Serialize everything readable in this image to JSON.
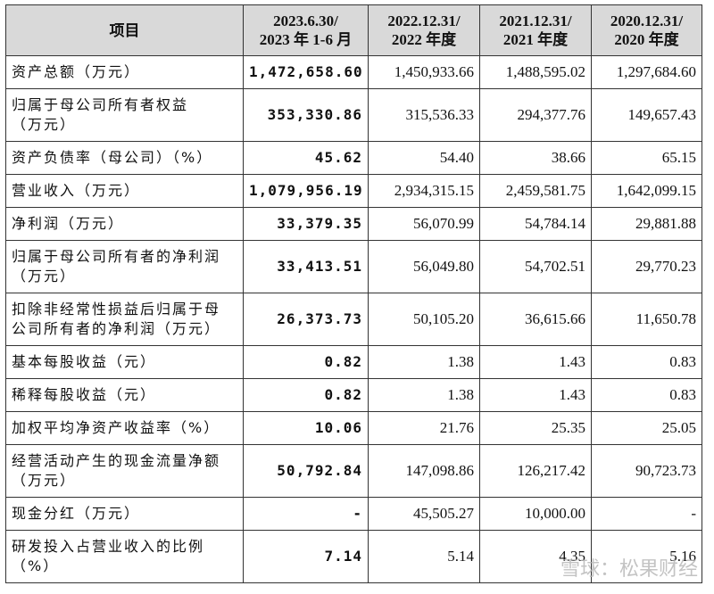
{
  "table": {
    "header": [
      "项目",
      "2023.6.30/\n2023 年 1-6 月",
      "2022.12.31/\n2022 年度",
      "2021.12.31/\n2021 年度",
      "2020.12.31/\n2020 年度"
    ],
    "rows": [
      [
        "资产总额（万元）",
        "1,472,658.60",
        "1,450,933.66",
        "1,488,595.02",
        "1,297,684.60"
      ],
      [
        "归属于母公司所有者权益\n（万元）",
        "353,330.86",
        "315,536.33",
        "294,377.76",
        "149,657.43"
      ],
      [
        "资产负债率（母公司）（%）",
        "45.62",
        "54.40",
        "38.66",
        "65.15"
      ],
      [
        "营业收入（万元）",
        "1,079,956.19",
        "2,934,315.15",
        "2,459,581.75",
        "1,642,099.15"
      ],
      [
        "净利润（万元）",
        "33,379.35",
        "56,070.99",
        "54,784.14",
        "29,881.88"
      ],
      [
        "归属于母公司所有者的净利润\n（万元）",
        "33,413.51",
        "56,049.80",
        "54,702.51",
        "29,770.23"
      ],
      [
        "扣除非经常性损益后归属于母\n公司所有者的净利润（万元）",
        "26,373.73",
        "50,105.20",
        "36,615.66",
        "11,650.78"
      ],
      [
        "基本每股收益（元）",
        "0.82",
        "1.38",
        "1.43",
        "0.83"
      ],
      [
        "稀释每股收益（元）",
        "0.82",
        "1.38",
        "1.43",
        "0.83"
      ],
      [
        "加权平均净资产收益率（%）",
        "10.06",
        "21.76",
        "25.35",
        "25.05"
      ],
      [
        "经营活动产生的现金流量净额\n（万元）",
        "50,792.84",
        "147,098.86",
        "126,217.42",
        "90,723.73"
      ],
      [
        "现金分红（万元）",
        "-",
        "45,505.27",
        "10,000.00",
        "-"
      ],
      [
        "研发投入占营业收入的比例\n（%）",
        "7.14",
        "5.14",
        "4.35",
        "5.16"
      ]
    ]
  },
  "watermark": "雪球：松果财经"
}
